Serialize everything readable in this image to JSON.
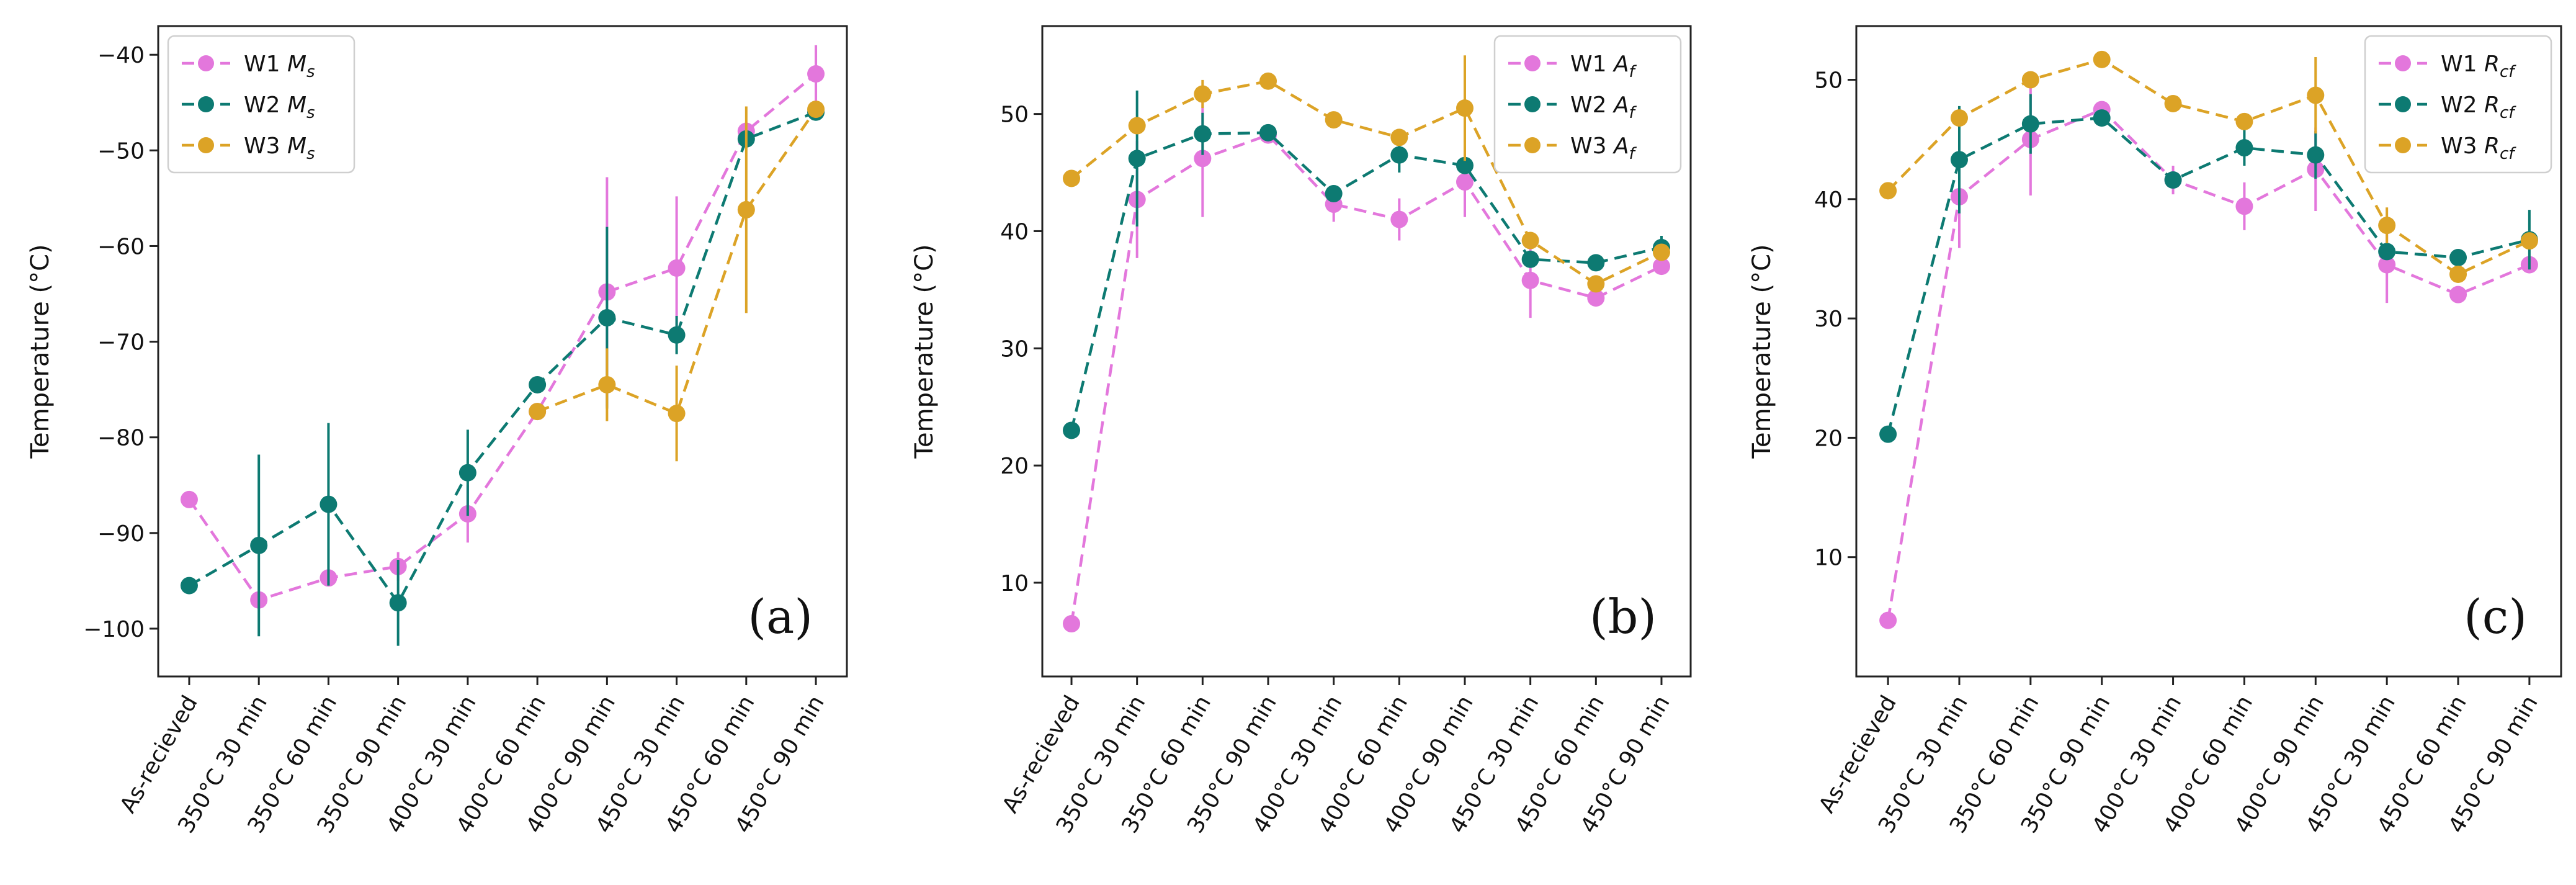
{
  "colors": {
    "W1": "#e377dc",
    "W2": "#0d7a72",
    "W3": "#dca326"
  },
  "chart_data": [
    {
      "type": "line",
      "panel_label": "(a)",
      "title": "",
      "xlabel": "",
      "ylabel": "Temperature (°C)",
      "ylim": [
        -105,
        -37
      ],
      "yticks": [
        -100,
        -90,
        -80,
        -70,
        -60,
        -50,
        -40
      ],
      "categories": [
        "As-recieved",
        "350°C 30 min",
        "350°C 60 min",
        "350°C 90 min",
        "400°C 30 min",
        "400°C 60 min",
        "400°C 90 min",
        "450°C 30 min",
        "450°C 60 min",
        "450°C 90 min"
      ],
      "legend_position": "top-left",
      "series": [
        {
          "name": "W1",
          "sub": "s",
          "values": [
            -86.5,
            -97.0,
            -94.7,
            -93.5,
            -88.0,
            -77.3,
            -64.8,
            -62.3,
            -48.0,
            -42.0
          ],
          "err": [
            0,
            0,
            0,
            1.5,
            3,
            0,
            12,
            7.5,
            0,
            3
          ]
        },
        {
          "name": "W2",
          "sub": "s",
          "values": [
            -95.5,
            -91.3,
            -87.0,
            -97.3,
            -83.7,
            -74.5,
            -67.5,
            -69.3,
            -48.8,
            -46.0
          ],
          "err": [
            0,
            9.5,
            8.5,
            4.5,
            4.5,
            0,
            9.5,
            2,
            0,
            0
          ]
        },
        {
          "name": "W3",
          "sub": "s",
          "values": [
            null,
            null,
            null,
            null,
            null,
            -77.3,
            -74.5,
            -77.5,
            -56.2,
            -45.7
          ],
          "err": [
            0,
            0,
            0,
            0,
            0,
            0,
            3.8,
            5,
            10.8,
            0
          ]
        }
      ]
    },
    {
      "type": "line",
      "panel_label": "(b)",
      "title": "",
      "xlabel": "",
      "ylabel": "Temperature (°C)",
      "ylim": [
        2,
        57.5
      ],
      "yticks": [
        10,
        20,
        30,
        40,
        50
      ],
      "categories": [
        "As-recieved",
        "350°C 30 min",
        "350°C 60 min",
        "350°C 90 min",
        "400°C 30 min",
        "400°C 60 min",
        "400°C 90 min",
        "450°C 30 min",
        "450°C 60 min",
        "450°C 90 min"
      ],
      "legend_position": "top-right",
      "series": [
        {
          "name": "W1",
          "sub": "f",
          "values": [
            6.5,
            42.7,
            46.2,
            48.2,
            42.3,
            41.0,
            44.2,
            35.8,
            34.3,
            37.0
          ],
          "err": [
            0,
            5,
            5,
            0,
            1.5,
            1.8,
            3,
            3.2,
            0,
            0
          ]
        },
        {
          "name": "W2",
          "sub": "f",
          "values": [
            23.0,
            46.2,
            48.3,
            48.4,
            43.2,
            46.5,
            45.6,
            37.6,
            37.3,
            38.6
          ],
          "err": [
            0,
            5.8,
            1.8,
            0,
            0,
            1.5,
            0,
            0,
            0,
            1
          ]
        },
        {
          "name": "W3",
          "sub": "f",
          "values": [
            44.5,
            49.0,
            51.7,
            52.8,
            49.5,
            48.0,
            50.5,
            39.2,
            35.5,
            38.2
          ],
          "err": [
            0,
            0,
            1.2,
            0,
            0,
            0,
            4.5,
            0,
            0,
            0
          ]
        }
      ]
    },
    {
      "type": "line",
      "panel_label": "(c)",
      "title": "",
      "xlabel": "",
      "ylabel": "Temperature (°C)",
      "ylim": [
        0,
        54.5
      ],
      "yticks": [
        10,
        20,
        30,
        40,
        50
      ],
      "categories": [
        "As-recieved",
        "350°C 30 min",
        "350°C 60 min",
        "350°C 90 min",
        "400°C 30 min",
        "400°C 60 min",
        "400°C 90 min",
        "450°C 30 min",
        "450°C 60 min",
        "450°C 90 min"
      ],
      "legend_position": "top-right",
      "series": [
        {
          "name": "W1",
          "sub": "cf",
          "values": [
            4.7,
            40.2,
            45.0,
            47.5,
            41.6,
            39.4,
            42.5,
            34.5,
            32.0,
            34.5
          ],
          "err": [
            0,
            4.3,
            4.7,
            0,
            1.2,
            2,
            3.5,
            3.2,
            0,
            0
          ]
        },
        {
          "name": "W2",
          "sub": "cf",
          "values": [
            20.3,
            43.3,
            46.3,
            46.8,
            41.6,
            44.3,
            43.7,
            35.6,
            35.1,
            36.6
          ],
          "err": [
            0,
            4.5,
            2.5,
            0,
            0,
            1.5,
            2,
            0,
            0,
            2.5
          ]
        },
        {
          "name": "W3",
          "sub": "cf",
          "values": [
            40.7,
            46.8,
            50.0,
            51.7,
            48.0,
            46.5,
            48.7,
            37.8,
            33.7,
            36.5
          ],
          "err": [
            0,
            0,
            0,
            0,
            0,
            0,
            3.2,
            1.5,
            0,
            0
          ]
        }
      ]
    }
  ]
}
